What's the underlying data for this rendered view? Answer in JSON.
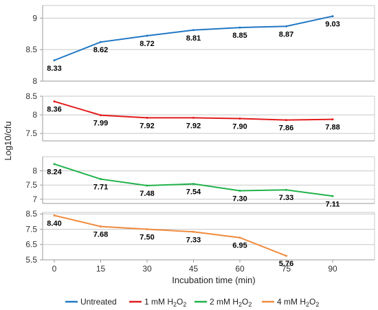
{
  "chart_data": {
    "type": "line",
    "xlabel": "Incubation time (min)",
    "ylabel": "Log10/cfu",
    "x": [
      0,
      15,
      30,
      45,
      60,
      75,
      90
    ],
    "x_ticks": [
      "0",
      "15",
      "30",
      "45",
      "60",
      "75",
      "90"
    ],
    "grid": true,
    "legend_position": "bottom",
    "panels": [
      {
        "series_index": 0,
        "ylim": [
          8,
          9.2
        ],
        "y_ticks": [
          8,
          8.5,
          9
        ],
        "y_tick_labels": [
          "8",
          "8.5",
          "9"
        ]
      },
      {
        "series_index": 1,
        "ylim": [
          7.3,
          8.5
        ],
        "y_ticks": [
          7.5,
          8,
          8.5
        ],
        "y_tick_labels": [
          "7.5",
          "8",
          "8.5"
        ]
      },
      {
        "series_index": 2,
        "ylim": [
          6.85,
          8.5
        ],
        "y_ticks": [
          7,
          7.5,
          8
        ],
        "y_tick_labels": [
          "7",
          "7.5",
          "8"
        ]
      },
      {
        "series_index": 3,
        "ylim": [
          5.5,
          8.6
        ],
        "y_ticks": [
          5.5,
          6.5,
          7.5,
          8.5
        ],
        "y_tick_labels": [
          "5.5",
          "6.5",
          "7.5",
          "8.5"
        ]
      }
    ],
    "series": [
      {
        "name": "Untreated",
        "color": "#1f77c4",
        "x": [
          0,
          15,
          30,
          45,
          60,
          75,
          90
        ],
        "values": [
          8.33,
          8.62,
          8.72,
          8.81,
          8.85,
          8.87,
          9.03
        ],
        "labels": [
          "8.33",
          "8.62",
          "8.72",
          "8.81",
          "8.85",
          "8.87",
          "9.03"
        ]
      },
      {
        "name": "1 mM H2O2",
        "name_parts": [
          "1 mM H",
          "2",
          "O",
          "2"
        ],
        "color": "#e31a1c",
        "x": [
          0,
          15,
          30,
          45,
          60,
          75,
          90
        ],
        "values": [
          8.36,
          7.99,
          7.92,
          7.92,
          7.9,
          7.86,
          7.88
        ],
        "labels": [
          "8.36",
          "7.99",
          "7.92",
          "7.92",
          "7.90",
          "7.86",
          "7.88"
        ]
      },
      {
        "name": "2 mM H2O2",
        "name_parts": [
          "2 mM H",
          "2",
          "O",
          "2"
        ],
        "color": "#1fb24a",
        "x": [
          0,
          15,
          30,
          45,
          60,
          75,
          90
        ],
        "values": [
          8.24,
          7.71,
          7.48,
          7.54,
          7.3,
          7.33,
          7.11
        ],
        "labels": [
          "8.24",
          "7.71",
          "7.48",
          "7.54",
          "7.30",
          "7.33",
          "7.11"
        ]
      },
      {
        "name": "4 mM H2O2",
        "name_parts": [
          "4 mM H",
          "2",
          "O",
          "2"
        ],
        "color": "#f08a3c",
        "x": [
          0,
          15,
          30,
          45,
          60,
          75
        ],
        "values": [
          8.4,
          7.68,
          7.5,
          7.33,
          6.95,
          5.76
        ],
        "labels": [
          "8.40",
          "7.68",
          "7.50",
          "7.33",
          "6.95",
          "5.76"
        ]
      }
    ]
  }
}
